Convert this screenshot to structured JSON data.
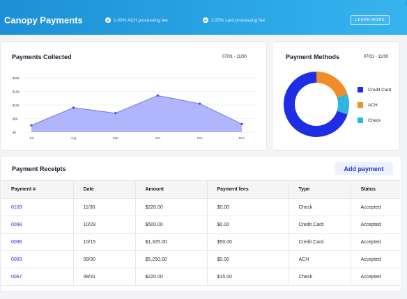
{
  "banner": {
    "title": "Canopy Payments",
    "feature1": "1.00% ACH processing fee",
    "feature2": "2.95% card processing fee",
    "learn_more": "LEARN MORE"
  },
  "payments_collected": {
    "title": "Payments Collected",
    "range": "07/01 - 11/30"
  },
  "payment_methods": {
    "title": "Payment Methods",
    "range": "07/01 - 11/30",
    "legend": [
      {
        "label": "Credit Card",
        "color": "#1d2ee6",
        "value": 70
      },
      {
        "label": "ACH",
        "color": "#f28c28",
        "value": 20
      },
      {
        "label": "Check",
        "color": "#2fb5e0",
        "value": 10
      }
    ]
  },
  "chart_data": [
    {
      "type": "area",
      "categories": [
        "Jul",
        "Aug",
        "Sep",
        "Oct",
        "Nov",
        "Dec"
      ],
      "values": [
        2.5,
        9,
        7,
        13.5,
        10.5,
        3
      ],
      "ylim": [
        0,
        20
      ],
      "yticks": [
        "$0",
        "$5k",
        "$10k",
        "$15k",
        "$20k"
      ],
      "grid": true,
      "color": "#6f78f2"
    },
    {
      "type": "pie",
      "labels": [
        "Credit Card",
        "ACH",
        "Check"
      ],
      "values": [
        70,
        20,
        10
      ],
      "colors": [
        "#1d2ee6",
        "#f28c28",
        "#2fb5e0"
      ]
    }
  ],
  "receipts": {
    "title": "Payment Receipts",
    "add_button": "Add payment",
    "columns": [
      "Payment #",
      "Date",
      "Amount",
      "Payment fees",
      "Type",
      "Status"
    ],
    "rows": [
      [
        "0109",
        "11/30",
        "$220.00",
        "$0.00",
        "Check",
        "Accepted"
      ],
      [
        "0098",
        "10/29",
        "$500.00",
        "$0.00",
        "Credit Card",
        "Accepted"
      ],
      [
        "0096",
        "10/15",
        "$1,325.00",
        "$50.00",
        "Credit Card",
        "Accepted"
      ],
      [
        "0083",
        "09/30",
        "$5,250.00",
        "$0.00",
        "ACH",
        "Accepted"
      ],
      [
        "0067",
        "08/31",
        "$220.00",
        "$15.00",
        "Check",
        "Accepted"
      ]
    ]
  }
}
